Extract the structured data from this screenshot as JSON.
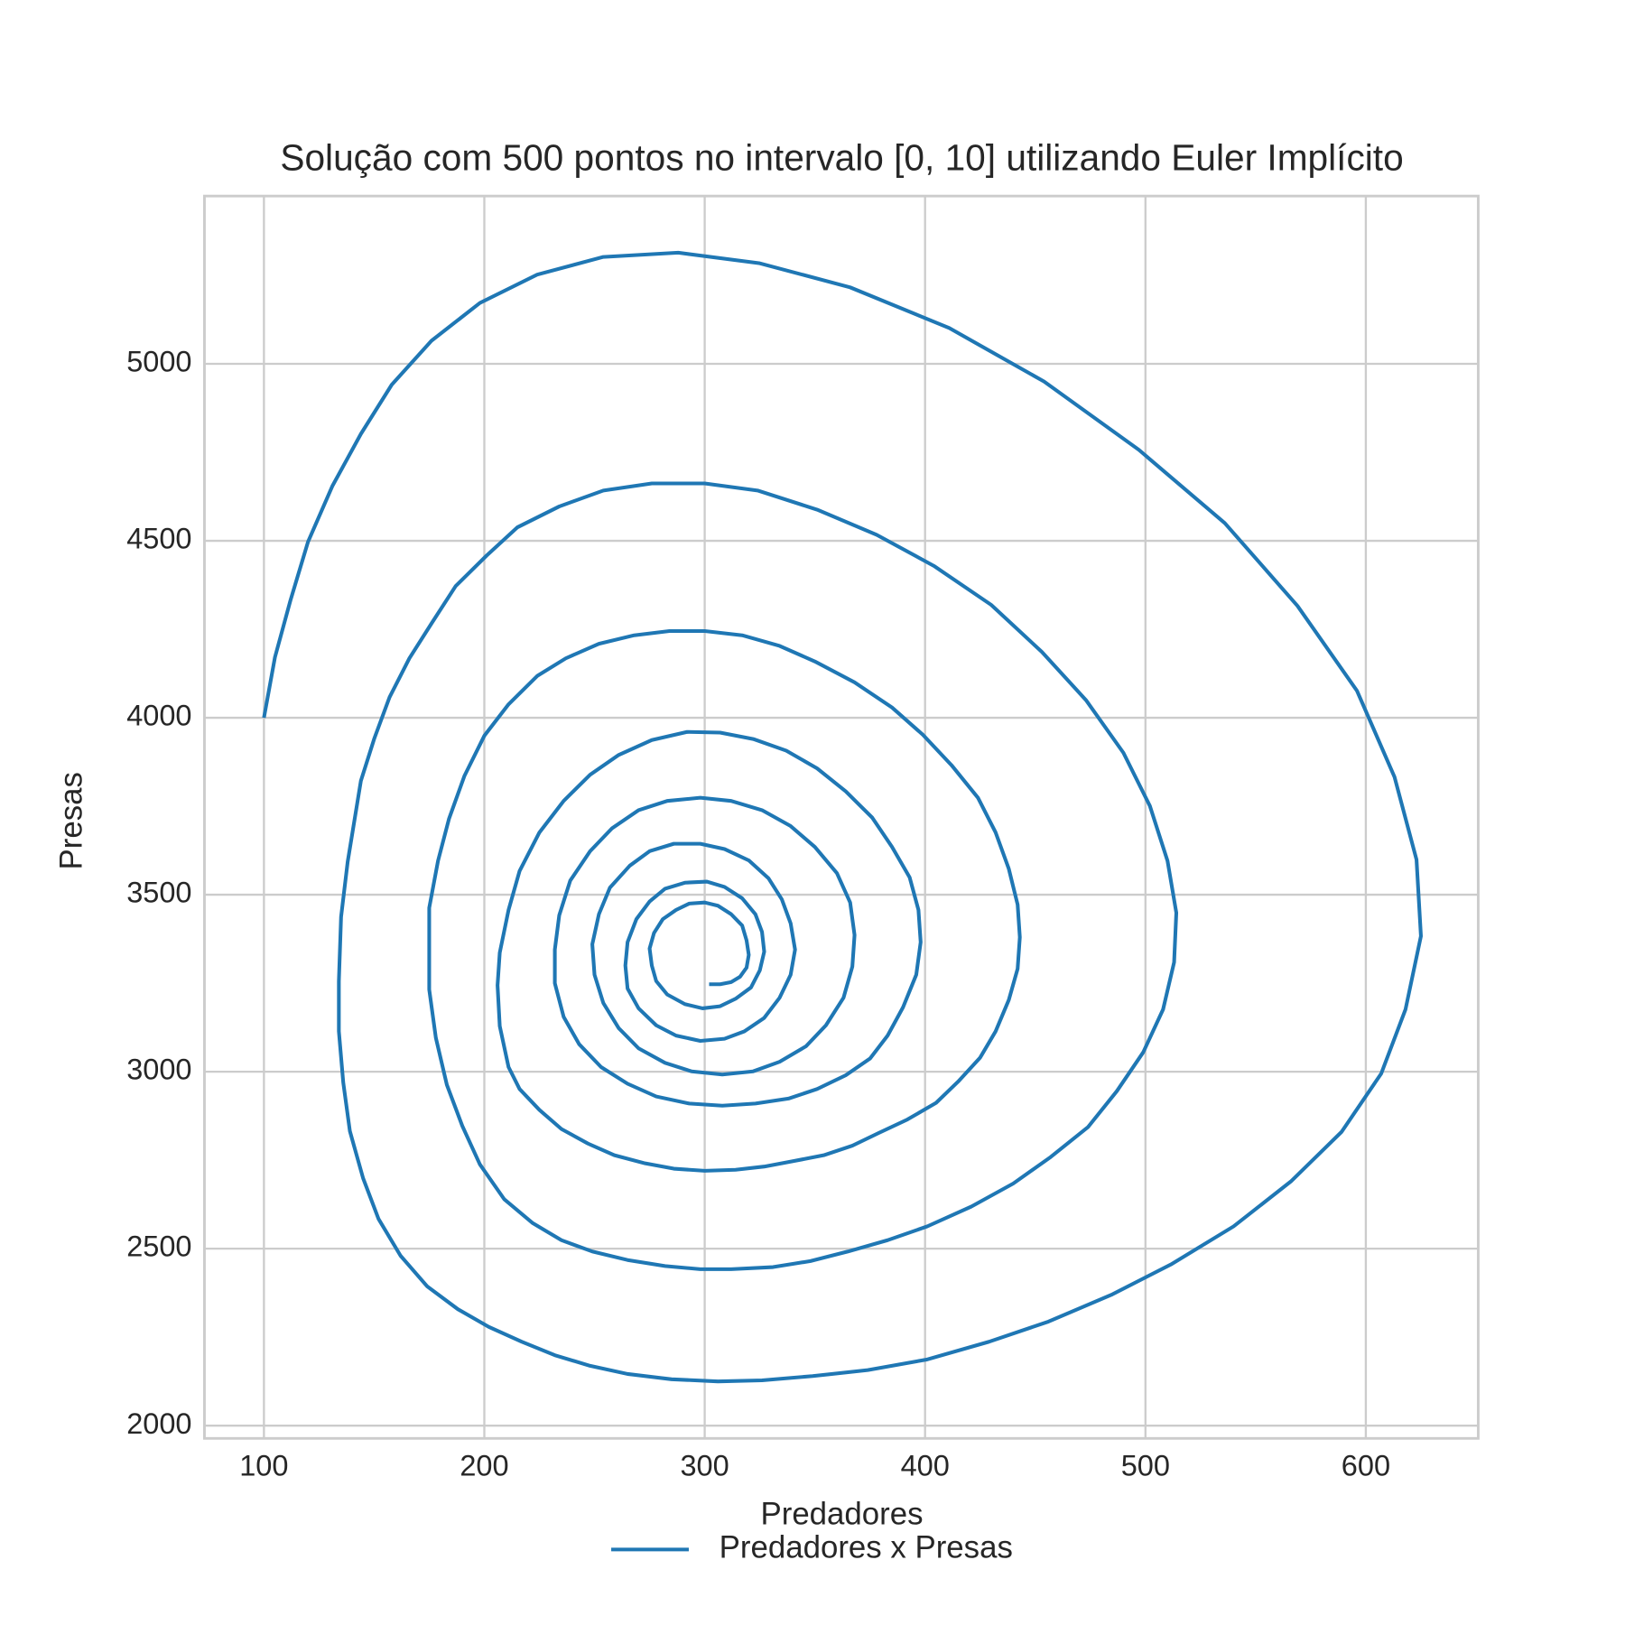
{
  "chart_data": {
    "type": "line",
    "title": "Solução com 500 pontos no intervalo [0, 10] utilizando Euler Implícito",
    "x_label": "Predadores",
    "y_label": "Presas",
    "xlim": [
      73,
      651
    ],
    "ylim": [
      1964,
      5474
    ],
    "xticks": [
      100,
      200,
      300,
      400,
      500,
      600
    ],
    "yticks": [
      2000,
      2500,
      3000,
      3500,
      4000,
      4500,
      5000
    ],
    "grid": true,
    "legend": "below",
    "x": [
      100,
      105,
      112,
      120,
      131,
      144,
      158,
      176,
      198,
      224,
      254,
      288,
      325,
      366,
      411,
      454,
      497,
      536,
      569,
      596,
      613,
      623,
      625,
      618,
      607,
      589,
      566,
      540,
      512,
      485,
      456,
      429,
      401,
      374,
      349,
      326,
      306,
      285,
      265,
      248,
      232,
      217,
      202,
      188,
      174,
      162,
      152,
      145,
      139,
      136,
      134,
      134,
      135,
      138,
      144,
      150,
      157,
      166,
      176,
      187,
      201,
      215,
      234,
      254,
      276,
      300,
      324,
      351,
      378,
      404,
      430,
      453,
      473,
      490,
      502,
      510,
      514,
      513,
      508,
      499,
      487,
      474,
      457,
      440,
      421,
      401,
      383,
      365,
      348,
      331,
      312,
      298,
      282,
      265,
      249,
      235,
      222,
      209,
      198,
      190,
      183,
      178,
      175,
      175,
      175,
      179,
      184,
      191,
      200,
      211,
      224,
      237,
      252,
      268,
      284,
      300,
      317,
      334,
      350,
      368,
      385,
      399,
      412,
      424,
      432,
      438,
      442,
      443,
      442,
      438,
      432,
      425,
      415,
      405,
      392,
      379,
      367,
      354,
      340,
      327,
      314,
      300,
      286,
      273,
      259,
      247,
      235,
      225,
      216,
      211,
      207,
      206,
      207,
      211,
      216,
      225,
      236,
      248,
      261,
      276,
      292,
      307,
      322,
      337,
      351,
      364,
      376,
      385,
      393,
      397,
      398,
      396,
      390,
      383,
      375,
      364,
      351,
      338,
      323,
      308,
      293,
      278,
      265,
      253,
      243,
      236,
      232,
      232,
      234,
      239,
      248,
      258,
      270,
      283,
      298,
      312,
      326,
      339,
      350,
      360,
      366,
      368,
      367,
      363,
      355,
      346,
      334,
      322,
      308,
      294,
      282,
      270,
      261,
      254,
      250,
      249,
      252,
      257,
      266,
      275,
      286,
      298,
      309,
      320,
      329,
      335,
      339,
      341,
      339,
      334,
      327,
      318,
      309,
      298,
      287,
      278,
      270,
      265,
      264,
      265,
      269,
      275,
      282,
      291,
      301,
      309,
      317,
      323,
      326,
      327,
      325,
      321,
      314,
      307,
      299,
      291,
      283,
      278,
      276,
      275,
      277,
      281,
      287,
      293,
      300,
      306,
      312,
      317,
      319,
      320,
      319,
      316,
      312,
      307,
      302
    ],
    "series": [
      {
        "name": "Predadores x Presas",
        "color": "#1f77b4",
        "values": [
          4000,
          4171,
          4331,
          4497,
          4654,
          4802,
          4941,
          5065,
          5172,
          5252,
          5302,
          5314,
          5284,
          5216,
          5101,
          4950,
          4757,
          4550,
          4316,
          4076,
          3833,
          3599,
          3383,
          3176,
          2995,
          2830,
          2690,
          2563,
          2457,
          2371,
          2294,
          2237,
          2187,
          2157,
          2140,
          2128,
          2125,
          2131,
          2146,
          2169,
          2199,
          2237,
          2279,
          2329,
          2394,
          2480,
          2584,
          2699,
          2832,
          2969,
          3114,
          3256,
          3437,
          3593,
          3822,
          3940,
          4058,
          4168,
          4266,
          4372,
          4458,
          4538,
          4597,
          4642,
          4662,
          4662,
          4642,
          4588,
          4517,
          4429,
          4319,
          4186,
          4050,
          3901,
          3751,
          3596,
          3449,
          3309,
          3176,
          3055,
          2945,
          2844,
          2759,
          2684,
          2619,
          2563,
          2524,
          2492,
          2465,
          2448,
          2442,
          2442,
          2451,
          2468,
          2492,
          2524,
          2572,
          2640,
          2738,
          2847,
          2963,
          3096,
          3232,
          3321,
          3463,
          3596,
          3715,
          3836,
          3949,
          4038,
          4118,
          4168,
          4209,
          4233,
          4245,
          4245,
          4233,
          4203,
          4159,
          4100,
          4029,
          3952,
          3866,
          3774,
          3676,
          3573,
          3472,
          3380,
          3291,
          3203,
          3114,
          3040,
          2972,
          2912,
          2865,
          2827,
          2791,
          2764,
          2747,
          2732,
          2723,
          2720,
          2726,
          2741,
          2764,
          2797,
          2838,
          2892,
          2951,
          3013,
          3129,
          3244,
          3336,
          3457,
          3567,
          3676,
          3765,
          3839,
          3895,
          3937,
          3960,
          3958,
          3940,
          3907,
          3857,
          3792,
          3718,
          3635,
          3549,
          3457,
          3366,
          3274,
          3182,
          3102,
          3037,
          2990,
          2951,
          2924,
          2910,
          2904,
          2910,
          2930,
          2966,
          3013,
          3078,
          3155,
          3250,
          3345,
          3442,
          3540,
          3623,
          3688,
          3739,
          3765,
          3774,
          3765,
          3739,
          3694,
          3635,
          3561,
          3478,
          3386,
          3297,
          3209,
          3131,
          3072,
          3028,
          3001,
          2992,
          3001,
          3025,
          3066,
          3123,
          3194,
          3274,
          3360,
          3445,
          3520,
          3582,
          3623,
          3644,
          3644,
          3629,
          3597,
          3546,
          3487,
          3419,
          3345,
          3274,
          3209,
          3152,
          3114,
          3093,
          3087,
          3102,
          3131,
          3179,
          3235,
          3300,
          3366,
          3431,
          3481,
          3517,
          3534,
          3537,
          3522,
          3490,
          3445,
          3395,
          3339,
          3286,
          3238,
          3206,
          3185,
          3179,
          3191,
          3218,
          3256,
          3300,
          3348,
          3392,
          3431,
          3457,
          3475,
          3478,
          3469,
          3445,
          3413,
          3371,
          3330,
          3294,
          3268,
          3253,
          3247,
          3247
        ]
      }
    ]
  }
}
